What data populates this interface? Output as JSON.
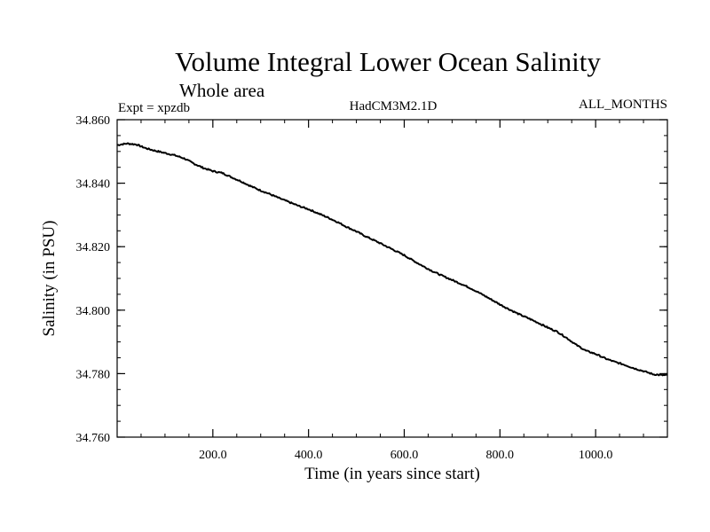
{
  "chart_data": {
    "type": "line",
    "title": "Volume Integral Lower Ocean Salinity",
    "subtitle": "Whole area",
    "header_left": "Expt = xpzdb",
    "header_center": "HadCM3M2.1D",
    "header_right": "ALL_MONTHS",
    "xlabel": "Time (in years since start)",
    "ylabel": "Salinity (in PSU)",
    "xlim": [
      0,
      1150
    ],
    "ylim": [
      34.76,
      34.86
    ],
    "xticks": [
      200,
      400,
      600,
      800,
      1000
    ],
    "xtick_labels": [
      "200.0",
      "400.0",
      "600.0",
      "800.0",
      "1000.0"
    ],
    "yticks": [
      34.76,
      34.78,
      34.8,
      34.82,
      34.84,
      34.86
    ],
    "ytick_labels": [
      "34.760",
      "34.780",
      "34.800",
      "34.820",
      "34.840",
      "34.860"
    ],
    "x_minor_step": 50,
    "y_minor_step": 0.005,
    "series": [
      {
        "name": "salinity",
        "x": [
          0,
          20,
          40,
          60,
          80,
          100,
          120,
          140,
          160,
          180,
          200,
          220,
          240,
          260,
          280,
          300,
          320,
          340,
          360,
          380,
          400,
          420,
          440,
          460,
          480,
          500,
          520,
          540,
          560,
          580,
          600,
          620,
          640,
          660,
          680,
          700,
          720,
          740,
          760,
          780,
          800,
          820,
          840,
          860,
          880,
          900,
          920,
          940,
          960,
          980,
          1000,
          1020,
          1040,
          1060,
          1080,
          1100,
          1120,
          1140,
          1150
        ],
        "values": [
          34.852,
          34.8525,
          34.8522,
          34.851,
          34.8502,
          34.8495,
          34.8488,
          34.8478,
          34.8462,
          34.8448,
          34.8438,
          34.8432,
          34.8418,
          34.8405,
          34.839,
          34.8377,
          34.8365,
          34.8352,
          34.834,
          34.8328,
          34.8318,
          34.8305,
          34.8292,
          34.8278,
          34.8262,
          34.8248,
          34.8232,
          34.8218,
          34.8203,
          34.8188,
          34.8173,
          34.8155,
          34.8138,
          34.8122,
          34.8108,
          34.8095,
          34.8082,
          34.8068,
          34.8052,
          34.8035,
          34.8018,
          34.8002,
          34.7987,
          34.7974,
          34.796,
          34.7945,
          34.7932,
          34.7912,
          34.789,
          34.7872,
          34.7862,
          34.7848,
          34.7837,
          34.7828,
          34.7817,
          34.7808,
          34.7798,
          34.7795,
          34.7795
        ]
      }
    ]
  }
}
